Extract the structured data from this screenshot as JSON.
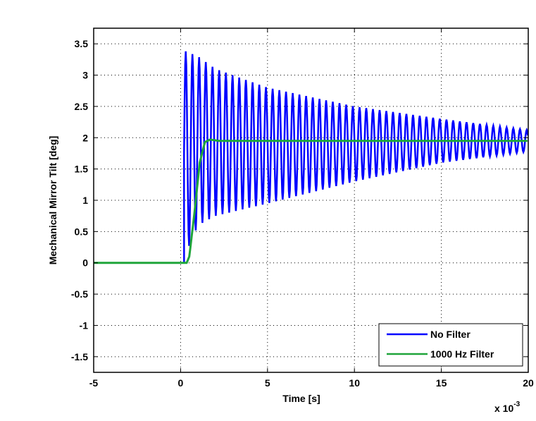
{
  "chart_data": {
    "type": "line",
    "title": "",
    "xlabel": "Time [s]",
    "ylabel": "Mechanical Mirror Tilt [deg]",
    "x_exponent_label": "x 10",
    "x_exponent_power": "-3",
    "xlim": [
      -5,
      20
    ],
    "ylim": [
      -1.75,
      3.75
    ],
    "xticks": [
      -5,
      0,
      5,
      10,
      15,
      20
    ],
    "yticks": [
      3.5,
      3,
      2.5,
      2,
      1.5,
      1,
      0.5,
      0,
      -0.5,
      -1,
      -1.5
    ],
    "grid": true,
    "legend_position": "bottom-right",
    "series": [
      {
        "name": "No Filter",
        "color": "#0000ff",
        "description_values": {
          "step_time": 0.2,
          "settled_value": 1.95,
          "oscillation_freq_khz": 2.6,
          "envelope_time": [
            0.3,
            1,
            2,
            5,
            10,
            15,
            20
          ],
          "envelope_upper": [
            3.38,
            3.3,
            3.1,
            2.8,
            2.5,
            2.3,
            2.12
          ],
          "envelope_lower": [
            0.15,
            0.6,
            0.75,
            0.95,
            1.3,
            1.6,
            1.78
          ]
        }
      },
      {
        "name": "1000 Hz Filter",
        "color": "#1fa53a",
        "description_values": {
          "time": [
            -5,
            0.35,
            0.5,
            0.8,
            1.1,
            1.4,
            1.7,
            2.2,
            20
          ],
          "value": [
            0,
            0,
            0.1,
            0.8,
            1.6,
            1.93,
            1.97,
            1.95,
            1.95
          ]
        }
      }
    ]
  }
}
